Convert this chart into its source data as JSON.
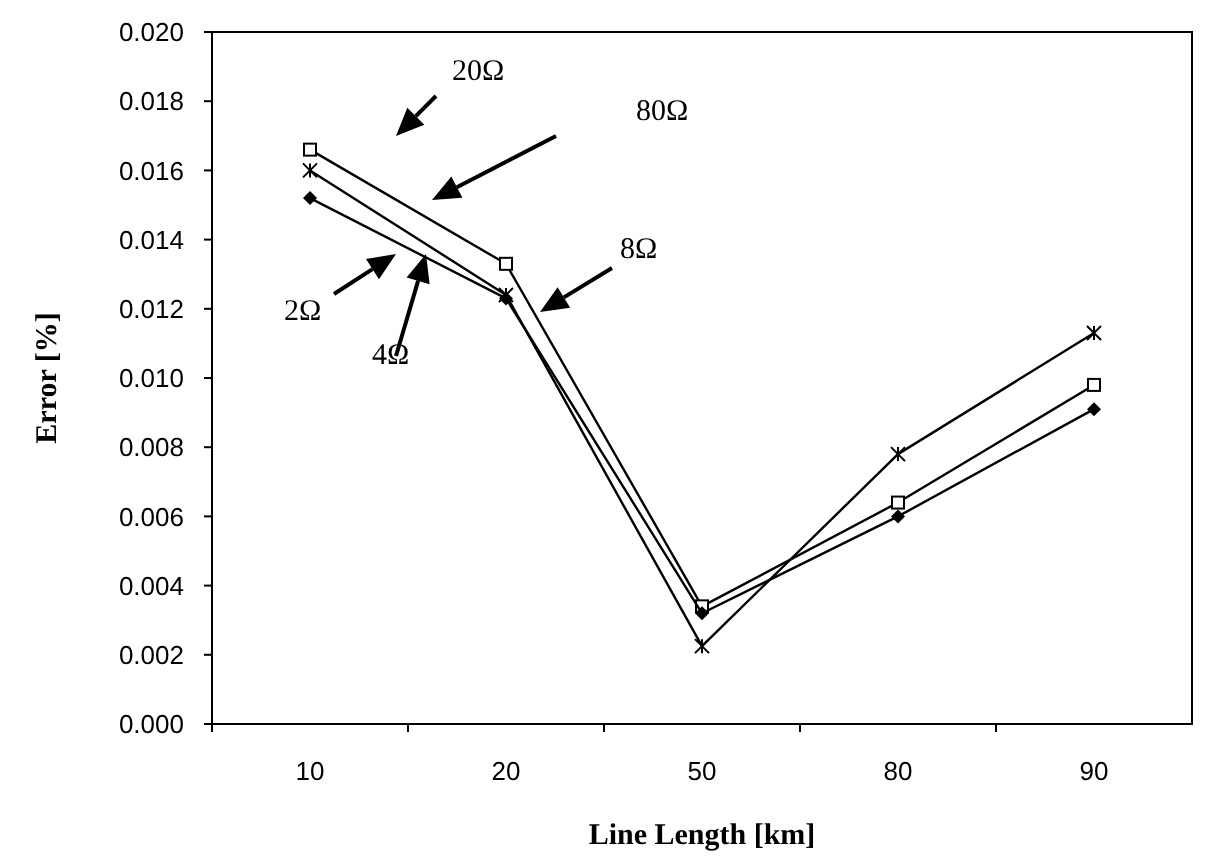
{
  "chart_data": {
    "type": "line",
    "xlabel": "Line Length [km]",
    "ylabel": "Error [%]",
    "categories": [
      "10",
      "20",
      "50",
      "80",
      "90"
    ],
    "series": [
      {
        "color": "#000000",
        "marker": "diamond",
        "values": [
          0.0152,
          0.0123,
          0.0032,
          0.006,
          0.0091
        ]
      },
      {
        "color": "#000000",
        "marker": "cross",
        "values": [
          0.016,
          0.0124,
          0.00225,
          0.0078,
          0.0113
        ]
      },
      {
        "color": "#000000",
        "marker": "square",
        "values": [
          0.0166,
          0.0133,
          0.0034,
          0.0064,
          0.0098
        ]
      }
    ],
    "ylim": [
      0,
      0.02
    ],
    "yticks": [
      {
        "value": 0,
        "label": "0.000"
      },
      {
        "value": 0.002,
        "label": "0.002"
      },
      {
        "value": 0.004,
        "label": "0.004"
      },
      {
        "value": 0.006,
        "label": "0.006"
      },
      {
        "value": 0.008,
        "label": "0.008"
      },
      {
        "value": 0.01,
        "label": "0.010"
      },
      {
        "value": 0.012,
        "label": "0.012"
      },
      {
        "value": 0.014,
        "label": "0.014"
      },
      {
        "value": 0.016,
        "label": "0.016"
      },
      {
        "value": 0.018,
        "label": "0.018"
      },
      {
        "value": 0.02,
        "label": "0.020"
      }
    ],
    "grid": false,
    "line_style": "solid",
    "annotations": [
      "20Ω",
      "80Ω",
      "8Ω",
      "2Ω",
      "4Ω"
    ]
  }
}
